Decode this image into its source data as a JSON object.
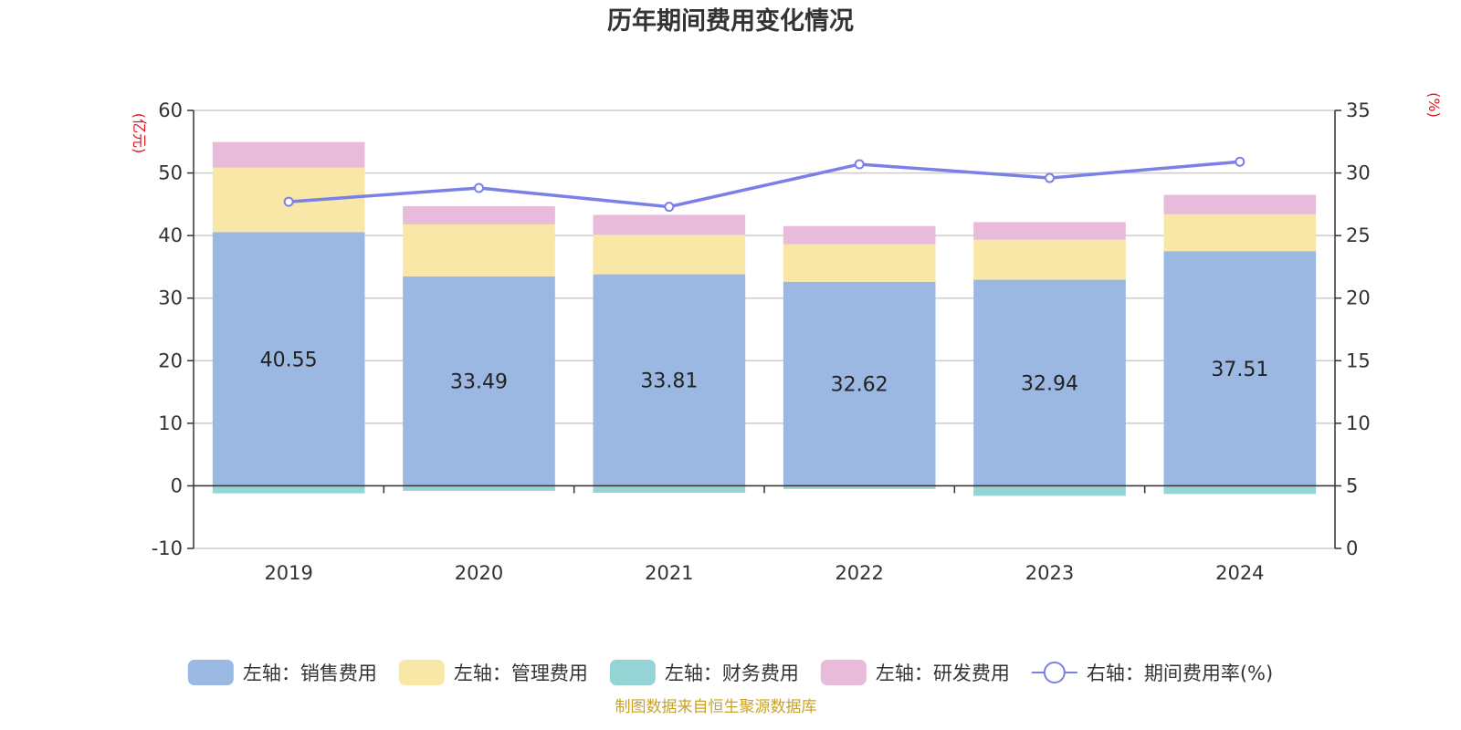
{
  "chart_data": {
    "type": "bar",
    "title": "历年期间费用变化情况",
    "categories": [
      "2019",
      "2020",
      "2021",
      "2022",
      "2023",
      "2024"
    ],
    "left_axis": {
      "unit": "(亿元)",
      "min": -10,
      "max": 60,
      "ticks": [
        "60",
        "50",
        "40",
        "30",
        "20",
        "10",
        "0",
        "-10"
      ]
    },
    "right_axis": {
      "unit": "(%)",
      "min": 0,
      "max": 35,
      "ticks": [
        "35",
        "30",
        "25",
        "20",
        "15",
        "10",
        "5",
        "0"
      ]
    },
    "series": [
      {
        "name": "左轴：销售费用",
        "type": "bar",
        "stack": true,
        "color": "#9bb8e2",
        "values": [
          40.55,
          33.49,
          33.81,
          32.62,
          32.94,
          37.51
        ],
        "labels": [
          "40.55",
          "33.49",
          "33.81",
          "32.62",
          "32.94",
          "37.51"
        ]
      },
      {
        "name": "左轴：管理费用",
        "type": "bar",
        "stack": true,
        "color": "#f8e7a6",
        "values": [
          10.3,
          8.3,
          6.3,
          6.0,
          6.4,
          5.9
        ]
      },
      {
        "name": "左轴：财务费用",
        "type": "bar",
        "stack": true,
        "color": "#95d4d4",
        "values": [
          -1.2,
          -0.8,
          -1.1,
          -0.5,
          -1.6,
          -1.3
        ]
      },
      {
        "name": "左轴：研发费用",
        "type": "bar",
        "stack": true,
        "color": "#e8bbda",
        "values": [
          4.1,
          2.9,
          3.2,
          2.9,
          2.8,
          3.1
        ]
      },
      {
        "name": "右轴：期间费用率(%)",
        "type": "line",
        "axis": "right",
        "color": "#7b7fe8",
        "values": [
          27.7,
          28.8,
          27.3,
          30.7,
          29.6,
          30.9
        ]
      }
    ],
    "grid": true,
    "legend_position": "bottom"
  },
  "source_note": "制图数据来自恒生聚源数据库",
  "colors": {
    "unit_red": "#e0151c",
    "source_gold": "#c9a227",
    "axis": "#333333",
    "grid": "#cccccc"
  }
}
